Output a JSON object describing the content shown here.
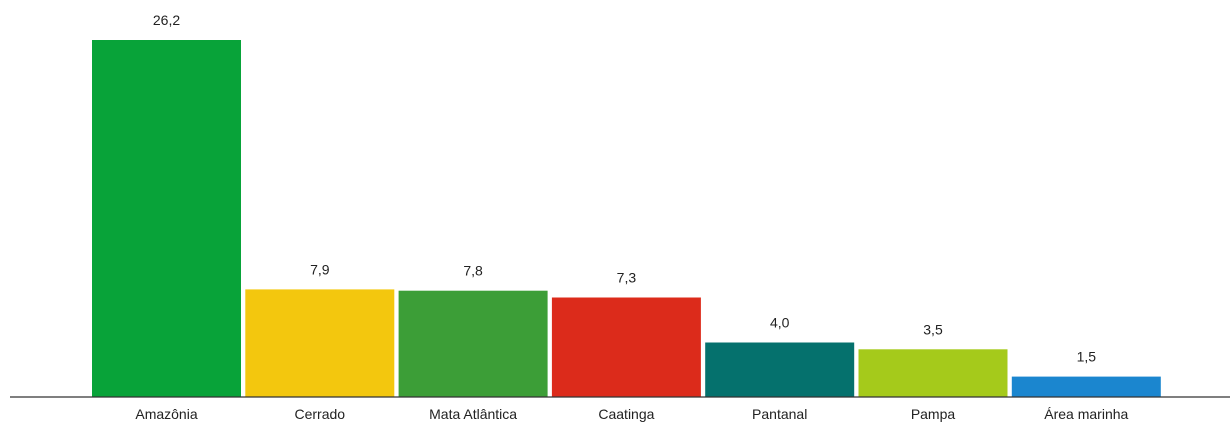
{
  "chart_data": {
    "type": "bar",
    "categories": [
      "Amazônia",
      "Cerrado",
      "Mata Atlântica",
      "Caatinga",
      "Pantanal",
      "Pampa",
      "Área marinha"
    ],
    "values": [
      26.2,
      7.9,
      7.8,
      7.3,
      4.0,
      3.5,
      1.5
    ],
    "value_labels": [
      "26,2",
      "7,9",
      "7,8",
      "7,3",
      "4,0",
      "3,5",
      "1,5"
    ],
    "colors": [
      "#08a339",
      "#f3c70e",
      "#3c9e37",
      "#dc2b1b",
      "#05716d",
      "#a5ca1b",
      "#1b86cf"
    ],
    "ylim": [
      0,
      26.2
    ],
    "grid": false,
    "legend": "none"
  }
}
